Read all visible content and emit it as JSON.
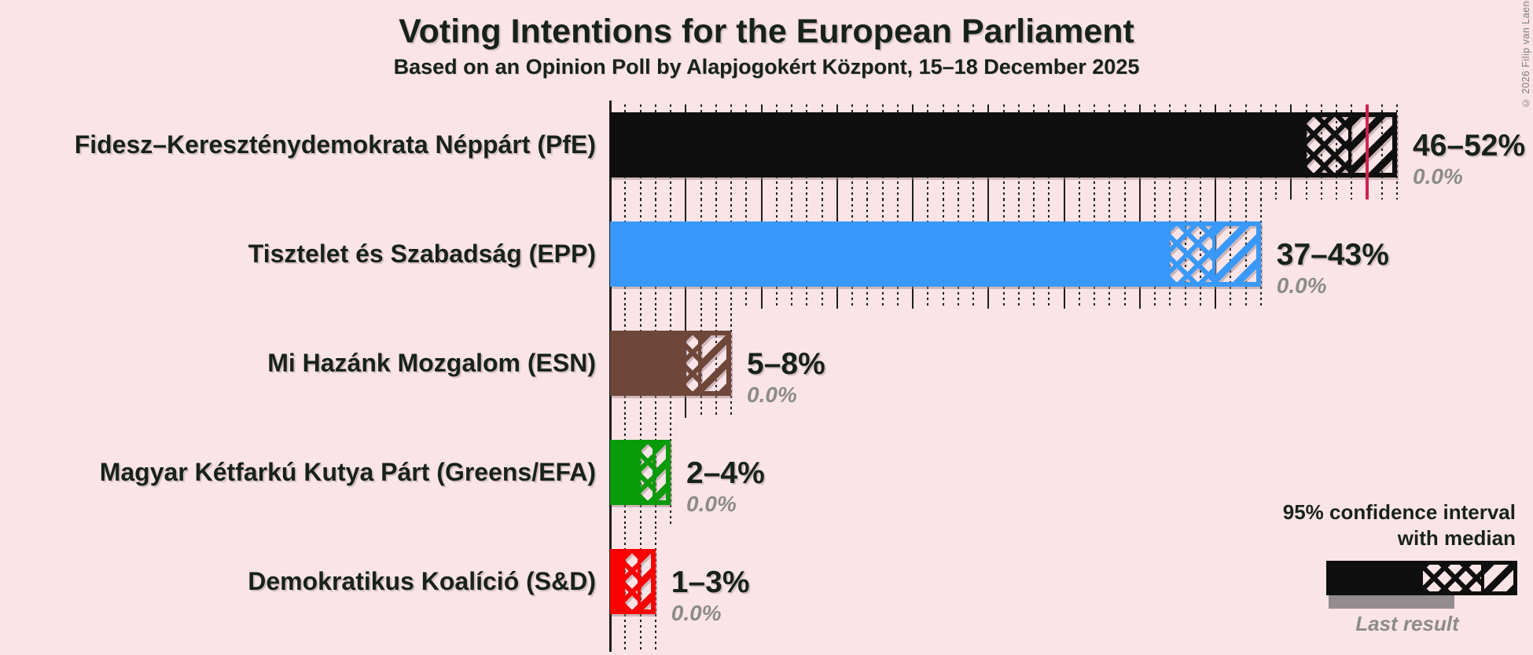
{
  "header": {
    "title": "Voting Intentions for the European Parliament",
    "subtitle": "Based on an Opinion Poll by Alapjogokért Központ, 15–18 December 2025"
  },
  "copyright": "© 2026 Filip van Laenen",
  "legend": {
    "ci_line1": "95% confidence interval",
    "ci_line2": "with median",
    "last_result": "Last result"
  },
  "chart_data": {
    "type": "bar",
    "orientation": "horizontal",
    "title": "Voting Intentions for the European Parliament",
    "subtitle": "Based on an Opinion Poll by Alapjogokért Központ, 15–18 December 2025",
    "x_axis": {
      "min": 0,
      "max": 53,
      "unit": "percent",
      "major_grid_step": 5,
      "minor_grid_step": 1,
      "tick_labels_visible": false,
      "majority_line": 50
    },
    "bars": [
      {
        "party": "Fidesz–Kereszténydemokrata Néppárt (PfE)",
        "ci_low": 46,
        "median": 49,
        "ci_high": 52,
        "range_label": "46–52%",
        "last_result": 0.0,
        "last_result_label": "0.0%",
        "color": "#0F0F0F"
      },
      {
        "party": "Tisztelet és Szabadság (EPP)",
        "ci_low": 37,
        "median": 40,
        "ci_high": 43,
        "range_label": "37–43%",
        "last_result": 0.0,
        "last_result_label": "0.0%",
        "color": "#3999FA"
      },
      {
        "party": "Mi Hazánk Mozgalom (ESN)",
        "ci_low": 5,
        "median": 6,
        "ci_high": 8,
        "range_label": "5–8%",
        "last_result": 0.0,
        "last_result_label": "0.0%",
        "color": "#6F463A"
      },
      {
        "party": "Magyar Kétfarkú Kutya Párt (Greens/EFA)",
        "ci_low": 2,
        "median": 3,
        "ci_high": 4,
        "range_label": "2–4%",
        "last_result": 0.0,
        "last_result_label": "0.0%",
        "color": "#0A9B0A"
      },
      {
        "party": "Demokratikus Koalíció (S&D)",
        "ci_low": 1,
        "median": 2,
        "ci_high": 3,
        "range_label": "1–3%",
        "last_result": 0.0,
        "last_result_label": "0.0%",
        "color": "#FB0000"
      }
    ],
    "colors": {
      "background": "#FBE4E7",
      "majority_line": "#D0224D",
      "grid": "#1E1E1E",
      "last_result_bar": "#958C8F",
      "muted_text": "#8B8B8B"
    }
  }
}
